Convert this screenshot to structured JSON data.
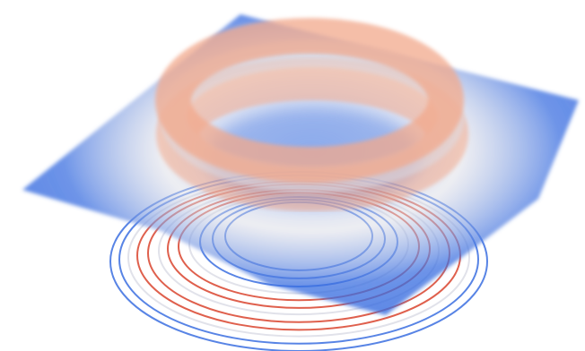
{
  "chart_data": {
    "type": "surface3d",
    "colors": {
      "low": "#3b6fe0",
      "mid": "#dcdde6",
      "high": "#d9442e",
      "peak": "#f2a98c"
    }
  }
}
